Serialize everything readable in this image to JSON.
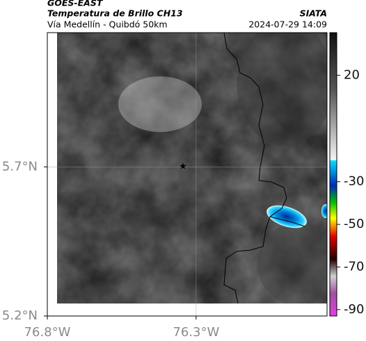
{
  "header": {
    "source": "GOES-EAST",
    "title": "Temperatura de Brillo CH13",
    "subtitle": "Vía Medellín - Quibdó 50km",
    "agency": "SIATA",
    "datetime": "2024-07-29 14:09"
  },
  "map": {
    "xlim": [
      -76.8,
      -75.86
    ],
    "ylim": [
      5.2,
      6.15
    ],
    "xticks": [
      {
        "value": -76.8,
        "label": "76.8°W"
      },
      {
        "value": -76.3,
        "label": "76.3°W"
      }
    ],
    "yticks": [
      {
        "value": 5.2,
        "label": "5.2°N"
      },
      {
        "value": 5.7,
        "label": "5.7°N"
      }
    ],
    "grid": true
  },
  "colorbar": {
    "lim": [
      -93,
      40
    ],
    "ticks": [
      20,
      -30,
      -50,
      -70,
      -90
    ]
  }
}
